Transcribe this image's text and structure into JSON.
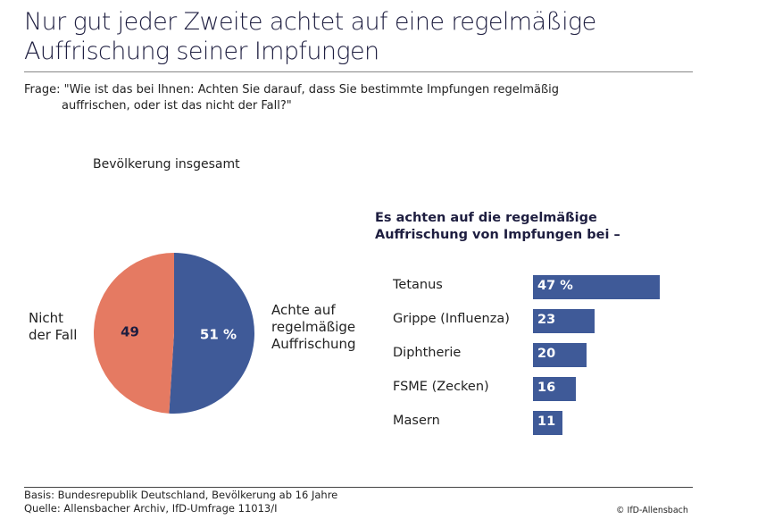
{
  "title": [
    "Nur gut jeder Zweite achtet auf eine regelmäßige",
    "Auffrischung seiner Impfungen"
  ],
  "question": [
    "Frage: \"Wie ist das bei Ihnen: Achten Sie darauf, dass Sie bestimmte Impfungen regelmäßig",
    "auffrischen, oder ist das nicht der Fall?\""
  ],
  "footer": {
    "basis": "Basis: Bundesrepublik Deutschland, Bevölkerung ab 16 Jahre",
    "source": "Quelle: Allensbacher Archiv, IfD-Umfrage 11013/I",
    "copyright": "© IfD-Allensbach"
  },
  "chart_data": [
    {
      "type": "pie",
      "title": "Bevölkerung insgesamt",
      "slices": [
        {
          "label": "Achte auf regelmäßige Auffrischung",
          "label_lines": [
            "Achte auf",
            "regelmäßige",
            "Auffrischung"
          ],
          "value": 51,
          "data_label": "51 %",
          "color": "#3f5a98"
        },
        {
          "label": "Nicht der Fall",
          "label_lines": [
            "Nicht",
            "der Fall"
          ],
          "value": 49,
          "data_label": "49",
          "color": "#e57a62"
        }
      ]
    },
    {
      "type": "bar",
      "orientation": "horizontal",
      "title": "Es achten auf die regelmäßige Auffrischung von Impfungen bei –",
      "title_lines": [
        "Es achten auf die regelmäßige",
        "Auffrischung von Impfungen bei –"
      ],
      "categories": [
        "Tetanus",
        "Grippe (Influenza)",
        "Diphtherie",
        "FSME (Zecken)",
        "Masern"
      ],
      "values": [
        47,
        23,
        20,
        16,
        11
      ],
      "data_labels": [
        "47 %",
        "23",
        "20",
        "16",
        "11"
      ],
      "unit": "%",
      "color": "#3f5a98"
    }
  ]
}
